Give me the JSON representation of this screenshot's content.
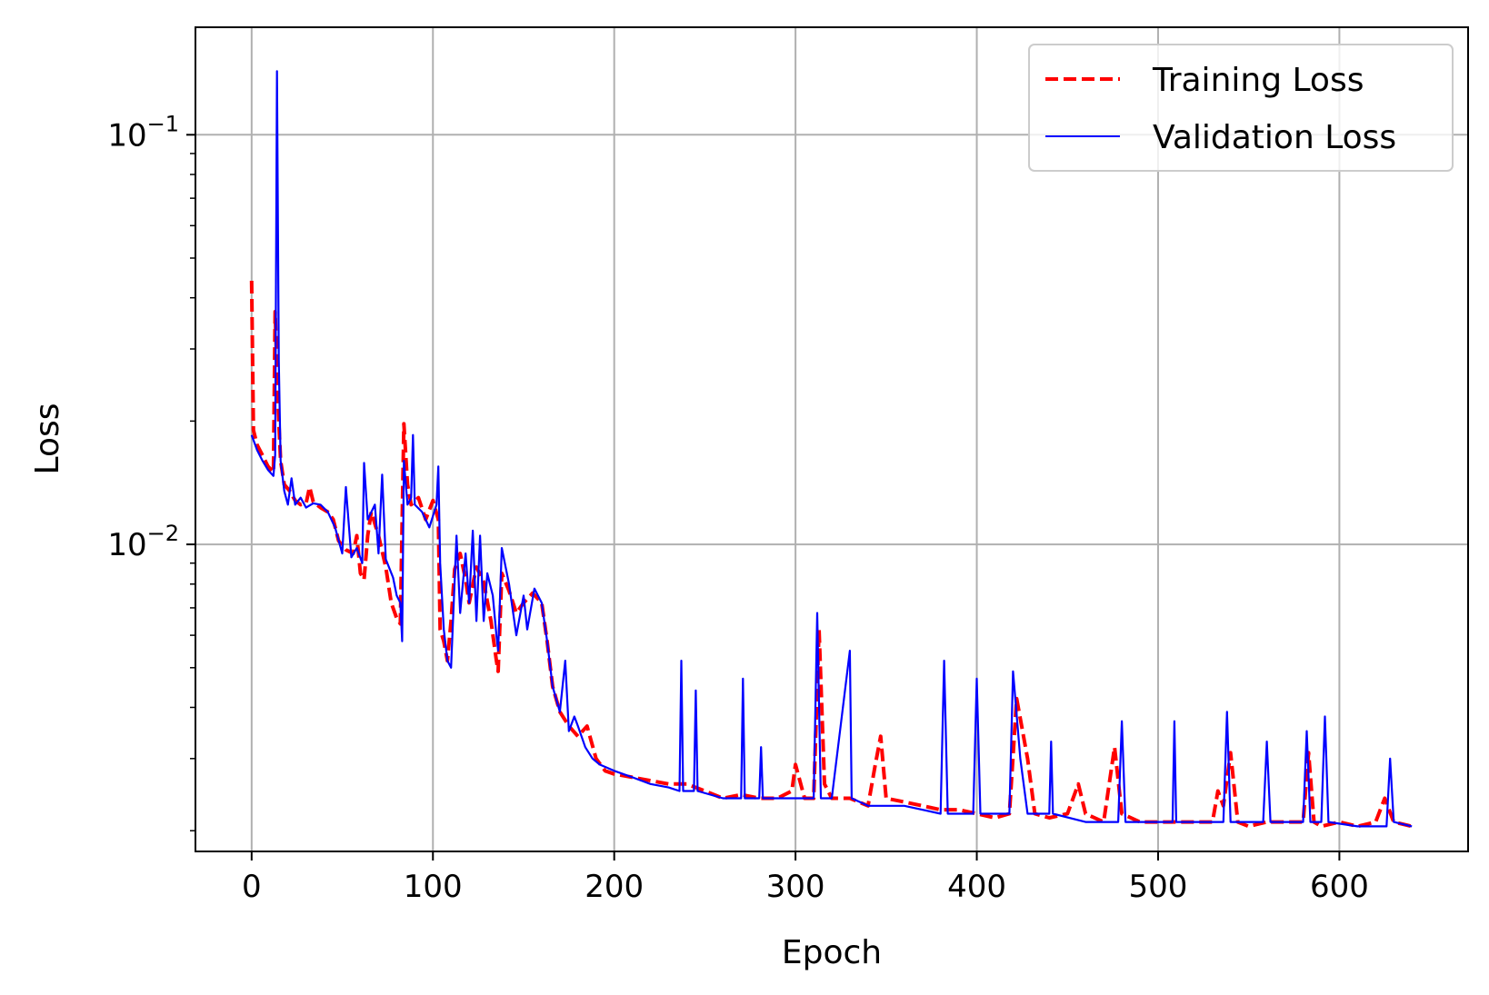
{
  "chart_data": {
    "type": "line",
    "title": "",
    "xlabel": "Epoch",
    "ylabel": "Loss",
    "xlim": [
      -31,
      671
    ],
    "ylim": [
      0.00178,
      0.183
    ],
    "yscale": "log",
    "grid": true,
    "legend": {
      "placement": "top-right"
    },
    "x_ticks": [
      0,
      100,
      200,
      300,
      400,
      500,
      600
    ],
    "y_ticks": [
      {
        "value": 0.01,
        "label": "10",
        "exp": "−2"
      },
      {
        "value": 0.1,
        "label": "10",
        "exp": "−1"
      }
    ],
    "series": [
      {
        "name": "Training Loss",
        "color": "#ff0000",
        "style": "dashed",
        "points": [
          [
            0,
            0.044
          ],
          [
            1,
            0.019
          ],
          [
            3,
            0.0175
          ],
          [
            6,
            0.0165
          ],
          [
            9,
            0.0155
          ],
          [
            12,
            0.015
          ],
          [
            13,
            0.037
          ],
          [
            14,
            0.026
          ],
          [
            15,
            0.02
          ],
          [
            16,
            0.016
          ],
          [
            18,
            0.014
          ],
          [
            21,
            0.0135
          ],
          [
            24,
            0.0128
          ],
          [
            27,
            0.0125
          ],
          [
            30,
            0.0126
          ],
          [
            32,
            0.0138
          ],
          [
            34,
            0.0127
          ],
          [
            38,
            0.0123
          ],
          [
            42,
            0.012
          ],
          [
            45,
            0.0115
          ],
          [
            48,
            0.0102
          ],
          [
            52,
            0.0097
          ],
          [
            56,
            0.0095
          ],
          [
            58,
            0.0105
          ],
          [
            60,
            0.0085
          ],
          [
            62,
            0.0082
          ],
          [
            64,
            0.0105
          ],
          [
            66,
            0.012
          ],
          [
            70,
            0.0105
          ],
          [
            74,
            0.0088
          ],
          [
            77,
            0.0072
          ],
          [
            80,
            0.0066
          ],
          [
            82,
            0.0064
          ],
          [
            84,
            0.0197
          ],
          [
            86,
            0.014
          ],
          [
            88,
            0.0125
          ],
          [
            92,
            0.013
          ],
          [
            96,
            0.0115
          ],
          [
            100,
            0.0128
          ],
          [
            103,
            0.0115
          ],
          [
            104,
            0.0062
          ],
          [
            106,
            0.0058
          ],
          [
            108,
            0.0052
          ],
          [
            110,
            0.0065
          ],
          [
            112,
            0.0087
          ],
          [
            115,
            0.0095
          ],
          [
            118,
            0.0082
          ],
          [
            120,
            0.0072
          ],
          [
            124,
            0.0088
          ],
          [
            128,
            0.0081
          ],
          [
            132,
            0.0065
          ],
          [
            135,
            0.0052
          ],
          [
            136,
            0.0049
          ],
          [
            138,
            0.0085
          ],
          [
            142,
            0.0077
          ],
          [
            146,
            0.0068
          ],
          [
            150,
            0.0072
          ],
          [
            155,
            0.0076
          ],
          [
            160,
            0.0072
          ],
          [
            163,
            0.0058
          ],
          [
            166,
            0.0045
          ],
          [
            170,
            0.0039
          ],
          [
            175,
            0.0036
          ],
          [
            180,
            0.0034
          ],
          [
            185,
            0.0036
          ],
          [
            190,
            0.003
          ],
          [
            195,
            0.0028
          ],
          [
            200,
            0.00275
          ],
          [
            210,
            0.0027
          ],
          [
            220,
            0.00265
          ],
          [
            230,
            0.0026
          ],
          [
            240,
            0.0026
          ],
          [
            250,
            0.0025
          ],
          [
            260,
            0.0024
          ],
          [
            270,
            0.00245
          ],
          [
            280,
            0.0024
          ],
          [
            290,
            0.0024
          ],
          [
            298,
            0.0025
          ],
          [
            300,
            0.0029
          ],
          [
            305,
            0.0024
          ],
          [
            310,
            0.0024
          ],
          [
            313,
            0.0062
          ],
          [
            316,
            0.0026
          ],
          [
            320,
            0.0024
          ],
          [
            330,
            0.0024
          ],
          [
            340,
            0.0023
          ],
          [
            344,
            0.0029
          ],
          [
            347,
            0.0034
          ],
          [
            350,
            0.0024
          ],
          [
            360,
            0.00235
          ],
          [
            370,
            0.0023
          ],
          [
            380,
            0.00225
          ],
          [
            390,
            0.00225
          ],
          [
            400,
            0.0022
          ],
          [
            410,
            0.00215
          ],
          [
            418,
            0.0022
          ],
          [
            422,
            0.0042
          ],
          [
            428,
            0.003
          ],
          [
            432,
            0.0022
          ],
          [
            440,
            0.00215
          ],
          [
            450,
            0.0022
          ],
          [
            456,
            0.0026
          ],
          [
            460,
            0.0022
          ],
          [
            470,
            0.0021
          ],
          [
            476,
            0.0032
          ],
          [
            480,
            0.0022
          ],
          [
            490,
            0.0021
          ],
          [
            500,
            0.0021
          ],
          [
            510,
            0.0021
          ],
          [
            520,
            0.0021
          ],
          [
            530,
            0.0021
          ],
          [
            533,
            0.0025
          ],
          [
            536,
            0.0023
          ],
          [
            540,
            0.0031
          ],
          [
            544,
            0.0021
          ],
          [
            550,
            0.00205
          ],
          [
            560,
            0.0021
          ],
          [
            570,
            0.0021
          ],
          [
            580,
            0.0021
          ],
          [
            583,
            0.0031
          ],
          [
            586,
            0.0021
          ],
          [
            590,
            0.00205
          ],
          [
            600,
            0.0021
          ],
          [
            610,
            0.00205
          ],
          [
            620,
            0.0021
          ],
          [
            625,
            0.0024
          ],
          [
            630,
            0.0021
          ],
          [
            640,
            0.00205
          ]
        ]
      },
      {
        "name": "Validation Loss",
        "color": "#0000ff",
        "style": "solid",
        "points": [
          [
            0,
            0.0185
          ],
          [
            3,
            0.017
          ],
          [
            6,
            0.016
          ],
          [
            9,
            0.0152
          ],
          [
            12,
            0.0147
          ],
          [
            13,
            0.0165
          ],
          [
            14,
            0.143
          ],
          [
            15,
            0.028
          ],
          [
            16,
            0.016
          ],
          [
            18,
            0.0135
          ],
          [
            20,
            0.0125
          ],
          [
            22,
            0.0145
          ],
          [
            24,
            0.0125
          ],
          [
            27,
            0.013
          ],
          [
            30,
            0.0123
          ],
          [
            34,
            0.0126
          ],
          [
            38,
            0.0125
          ],
          [
            42,
            0.012
          ],
          [
            46,
            0.011
          ],
          [
            50,
            0.0095
          ],
          [
            52,
            0.0138
          ],
          [
            55,
            0.0093
          ],
          [
            58,
            0.0098
          ],
          [
            61,
            0.009
          ],
          [
            62,
            0.0158
          ],
          [
            64,
            0.0115
          ],
          [
            68,
            0.0125
          ],
          [
            70,
            0.0095
          ],
          [
            72,
            0.0148
          ],
          [
            74,
            0.0092
          ],
          [
            78,
            0.0083
          ],
          [
            80,
            0.0075
          ],
          [
            82,
            0.0072
          ],
          [
            83,
            0.0058
          ],
          [
            84,
            0.016
          ],
          [
            86,
            0.0125
          ],
          [
            88,
            0.013
          ],
          [
            89,
            0.0185
          ],
          [
            90,
            0.0125
          ],
          [
            94,
            0.012
          ],
          [
            98,
            0.011
          ],
          [
            102,
            0.0125
          ],
          [
            103,
            0.0155
          ],
          [
            104,
            0.009
          ],
          [
            106,
            0.0062
          ],
          [
            108,
            0.0052
          ],
          [
            110,
            0.005
          ],
          [
            112,
            0.0082
          ],
          [
            113,
            0.0105
          ],
          [
            115,
            0.0068
          ],
          [
            118,
            0.0095
          ],
          [
            120,
            0.0072
          ],
          [
            122,
            0.0108
          ],
          [
            124,
            0.0065
          ],
          [
            126,
            0.0105
          ],
          [
            128,
            0.0065
          ],
          [
            130,
            0.0085
          ],
          [
            133,
            0.0075
          ],
          [
            135,
            0.006
          ],
          [
            136,
            0.0055
          ],
          [
            138,
            0.0098
          ],
          [
            142,
            0.008
          ],
          [
            146,
            0.006
          ],
          [
            150,
            0.0075
          ],
          [
            152,
            0.0062
          ],
          [
            156,
            0.0078
          ],
          [
            160,
            0.0072
          ],
          [
            163,
            0.0058
          ],
          [
            166,
            0.0045
          ],
          [
            170,
            0.0039
          ],
          [
            173,
            0.0052
          ],
          [
            175,
            0.0035
          ],
          [
            178,
            0.0038
          ],
          [
            180,
            0.0036
          ],
          [
            184,
            0.0032
          ],
          [
            188,
            0.003
          ],
          [
            192,
            0.0029
          ],
          [
            200,
            0.0028
          ],
          [
            210,
            0.0027
          ],
          [
            220,
            0.0026
          ],
          [
            230,
            0.00255
          ],
          [
            236,
            0.0025
          ],
          [
            237,
            0.0052
          ],
          [
            238,
            0.0025
          ],
          [
            244,
            0.0025
          ],
          [
            245,
            0.0044
          ],
          [
            246,
            0.0025
          ],
          [
            260,
            0.0024
          ],
          [
            270,
            0.0024
          ],
          [
            271,
            0.0047
          ],
          [
            272,
            0.0024
          ],
          [
            280,
            0.0024
          ],
          [
            281,
            0.0032
          ],
          [
            282,
            0.0024
          ],
          [
            300,
            0.0024
          ],
          [
            310,
            0.0024
          ],
          [
            312,
            0.0068
          ],
          [
            314,
            0.0024
          ],
          [
            320,
            0.0024
          ],
          [
            330,
            0.0055
          ],
          [
            331,
            0.0024
          ],
          [
            340,
            0.0023
          ],
          [
            360,
            0.0023
          ],
          [
            380,
            0.0022
          ],
          [
            382,
            0.0052
          ],
          [
            384,
            0.0022
          ],
          [
            398,
            0.0022
          ],
          [
            400,
            0.0047
          ],
          [
            402,
            0.0022
          ],
          [
            418,
            0.0022
          ],
          [
            420,
            0.0049
          ],
          [
            424,
            0.003
          ],
          [
            428,
            0.0022
          ],
          [
            440,
            0.0022
          ],
          [
            441,
            0.0033
          ],
          [
            442,
            0.0022
          ],
          [
            460,
            0.0021
          ],
          [
            478,
            0.0021
          ],
          [
            480,
            0.0037
          ],
          [
            482,
            0.0021
          ],
          [
            500,
            0.0021
          ],
          [
            508,
            0.0021
          ],
          [
            509,
            0.0037
          ],
          [
            510,
            0.0021
          ],
          [
            536,
            0.0021
          ],
          [
            538,
            0.0039
          ],
          [
            540,
            0.0021
          ],
          [
            558,
            0.0021
          ],
          [
            560,
            0.0033
          ],
          [
            562,
            0.0021
          ],
          [
            580,
            0.0021
          ],
          [
            582,
            0.0035
          ],
          [
            584,
            0.0021
          ],
          [
            590,
            0.0021
          ],
          [
            592,
            0.0038
          ],
          [
            594,
            0.0021
          ],
          [
            610,
            0.00205
          ],
          [
            626,
            0.00205
          ],
          [
            628,
            0.003
          ],
          [
            630,
            0.0021
          ],
          [
            640,
            0.00205
          ]
        ]
      }
    ]
  }
}
